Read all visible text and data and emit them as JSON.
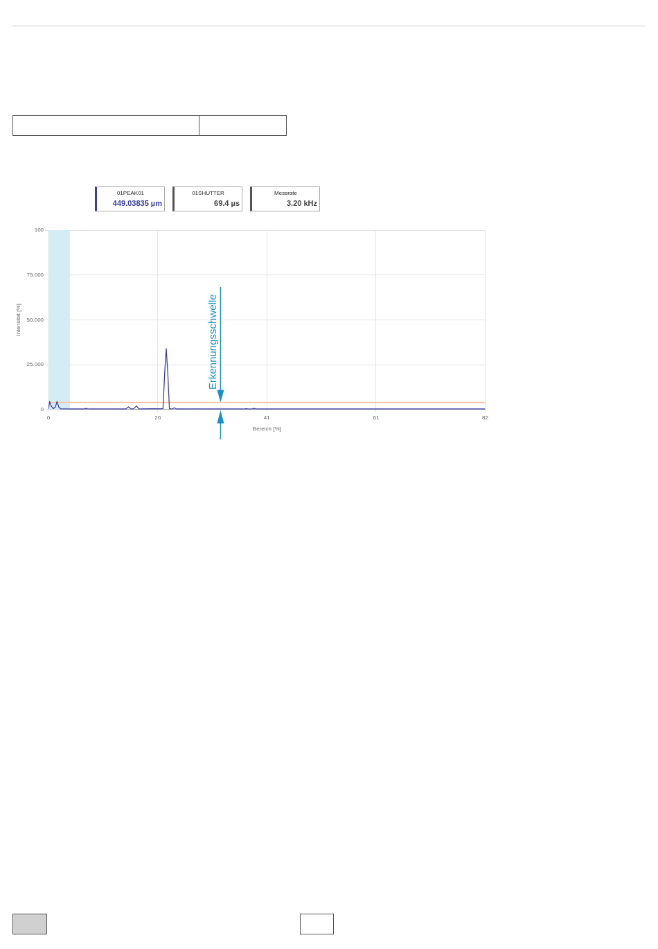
{
  "chart_data": {
    "type": "line",
    "xlabel": "Bereich [%]",
    "ylabel": "Intensität [%]",
    "xlim": [
      0,
      82
    ],
    "ylim": [
      0,
      100
    ],
    "xticks": [
      0,
      {
        "value": 20.5,
        "label": "20"
      },
      41,
      {
        "value": 61.5,
        "label": "61"
      },
      82
    ],
    "yticks": [
      0,
      {
        "value": 25,
        "label": "25.000"
      },
      {
        "value": 50,
        "label": "50.000"
      },
      {
        "value": 75,
        "label": "75.000"
      },
      100
    ],
    "grid": true,
    "legend": false,
    "marker": "none",
    "line_style": "solid",
    "series": [
      {
        "color": "#3b3ea6",
        "x": [
          0,
          0.2,
          0.5,
          0.9,
          1.3,
          1.6,
          1.9,
          2.3,
          6.5,
          7,
          7.5,
          14.5,
          15,
          15.5,
          16,
          16.5,
          17,
          21.5,
          21.8,
          22.1,
          22.4,
          22.7,
          23.2,
          23.6,
          24,
          36.6,
          37.1,
          37.6,
          38.1,
          38.6,
          39.1,
          82
        ],
        "values": [
          0.3,
          4.5,
          2,
          0.5,
          1.5,
          4.5,
          1.5,
          0.3,
          0.3,
          0.6,
          0.3,
          0.3,
          1.5,
          0.3,
          0.5,
          2,
          0.3,
          0.5,
          20,
          34,
          20,
          0.5,
          0.3,
          1,
          0.3,
          0.3,
          0.5,
          0.3,
          0.3,
          0.6,
          0.3,
          0.3
        ]
      }
    ],
    "ref_lines": [
      {
        "axis": "y",
        "value": 4,
        "color": "#f5c2a6"
      }
    ],
    "bands": [
      {
        "axis": "x",
        "from": 0,
        "to": 4,
        "color": "#d4ecf3"
      }
    ],
    "annotations": [
      "01PEAK01",
      "449.03835 µm",
      "01SHUTTER",
      "69.4 µs",
      "Messrate",
      "3.20 kHz",
      {
        "text": "Erkennungsschwelle",
        "x": 32.3,
        "y": 4
      }
    ]
  }
}
